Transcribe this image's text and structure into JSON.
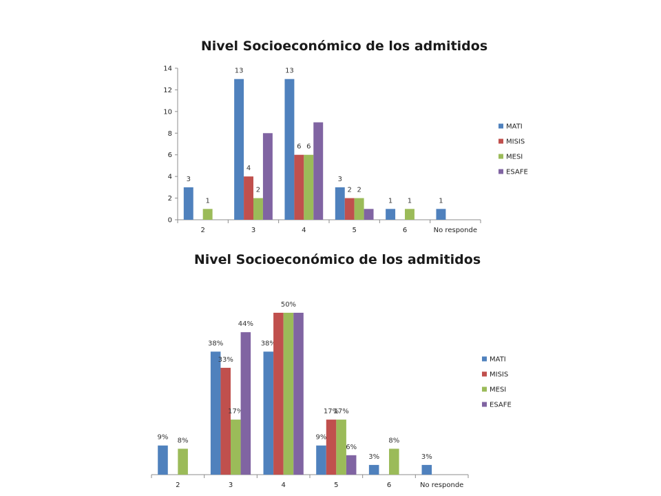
{
  "colors": {
    "MATI": "#4f81bd",
    "MISIS": "#c0504d",
    "MESI": "#9bbb59",
    "ESAFE": "#8064a2"
  },
  "chart_data": [
    {
      "type": "bar",
      "title": "Nivel Socioeconómico de los admitidos",
      "categories": [
        "2",
        "3",
        "4",
        "5",
        "6",
        "No responde"
      ],
      "ylim": [
        0,
        14
      ],
      "yticks": [
        "0",
        "2",
        "4",
        "6",
        "8",
        "10",
        "12",
        "14"
      ],
      "legend": "right",
      "series": [
        {
          "name": "MATI",
          "values": [
            3,
            13,
            13,
            3,
            1,
            1
          ],
          "labels": [
            "3",
            "13",
            "13",
            "3",
            "1",
            "1"
          ]
        },
        {
          "name": "MISIS",
          "values": [
            0,
            4,
            6,
            2,
            0,
            0
          ],
          "labels": [
            "",
            "4",
            "6",
            "2",
            "",
            ""
          ]
        },
        {
          "name": "MESI",
          "values": [
            1,
            2,
            6,
            2,
            1,
            0
          ],
          "labels": [
            "1",
            "2",
            "6",
            "2",
            "1",
            ""
          ]
        },
        {
          "name": "ESAFE",
          "values": [
            0,
            8,
            9,
            1,
            0,
            0
          ],
          "labels": [
            "",
            "",
            "",
            "",
            "",
            ""
          ]
        }
      ]
    },
    {
      "type": "bar",
      "title": "Nivel Socioeconómico de los admitidos",
      "categories": [
        "2",
        "3",
        "4",
        "5",
        "6",
        "No responde"
      ],
      "ylim": [
        0,
        50
      ],
      "legend": "right",
      "series": [
        {
          "name": "MATI",
          "values": [
            9,
            38,
            38,
            9,
            3,
            3
          ],
          "labels": [
            "9%",
            "38%",
            "38%",
            "9%",
            "3%",
            "3%"
          ]
        },
        {
          "name": "MISIS",
          "values": [
            0,
            33,
            50,
            17,
            0,
            0
          ],
          "labels": [
            "",
            "33%",
            "",
            "17%",
            "",
            ""
          ]
        },
        {
          "name": "MESI",
          "values": [
            8,
            17,
            50,
            17,
            8,
            0
          ],
          "labels": [
            "8%",
            "17%",
            "50%",
            "17%",
            "8%",
            ""
          ]
        },
        {
          "name": "ESAFE",
          "values": [
            0,
            44,
            50,
            6,
            0,
            0
          ],
          "labels": [
            "",
            "44%",
            "",
            "6%",
            "",
            ""
          ]
        }
      ]
    }
  ]
}
